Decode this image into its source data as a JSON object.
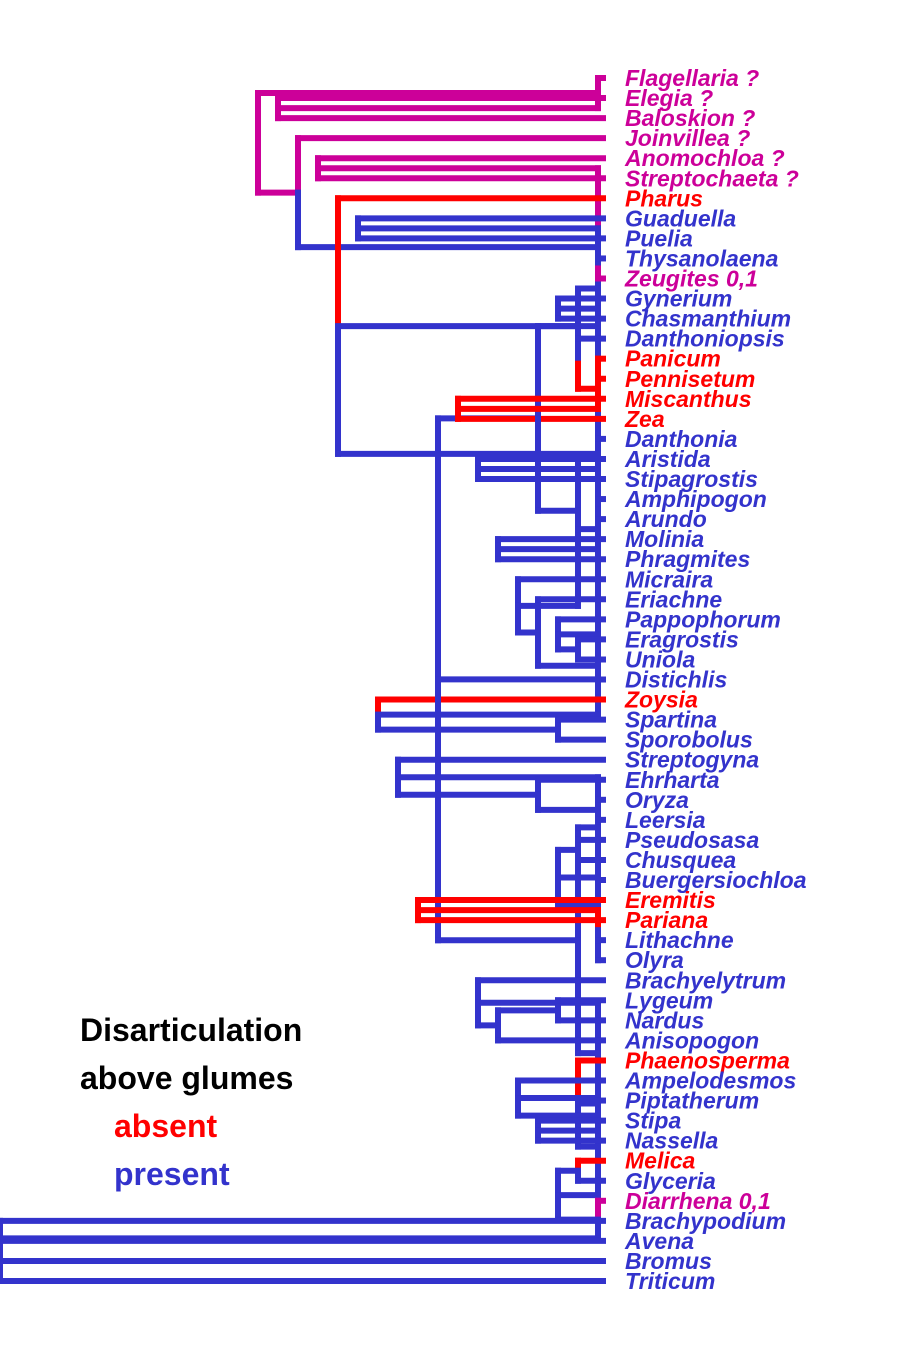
{
  "colors": {
    "absent": "#ff0000",
    "present": "#3333cc",
    "uncertain": "#cc0099",
    "title": "#000000"
  },
  "legend": {
    "title_line1": "Disarticulation",
    "title_line2": "above glumes",
    "absent_label": "absent",
    "present_label": "present"
  },
  "tree": {
    "taxa": [
      {
        "name": "Flagellaria ?",
        "state": "uncertain"
      },
      {
        "name": "Elegia ?",
        "state": "uncertain"
      },
      {
        "name": "Baloskion ?",
        "state": "uncertain"
      },
      {
        "name": "Joinvillea ?",
        "state": "uncertain"
      },
      {
        "name": "Anomochloa ?",
        "state": "uncertain"
      },
      {
        "name": "Streptochaeta ?",
        "state": "uncertain"
      },
      {
        "name": "Pharus",
        "state": "absent"
      },
      {
        "name": "Guaduella",
        "state": "present"
      },
      {
        "name": "Puelia",
        "state": "present"
      },
      {
        "name": "Thysanolaena",
        "state": "present"
      },
      {
        "name": "Zeugites 0,1",
        "state": "uncertain"
      },
      {
        "name": "Gynerium",
        "state": "present"
      },
      {
        "name": "Chasmanthium",
        "state": "present"
      },
      {
        "name": "Danthoniopsis",
        "state": "present"
      },
      {
        "name": "Panicum",
        "state": "absent"
      },
      {
        "name": "Pennisetum",
        "state": "absent"
      },
      {
        "name": "Miscanthus",
        "state": "absent"
      },
      {
        "name": "Zea",
        "state": "absent"
      },
      {
        "name": "Danthonia",
        "state": "present"
      },
      {
        "name": "Aristida",
        "state": "present"
      },
      {
        "name": "Stipagrostis",
        "state": "present"
      },
      {
        "name": "Amphipogon",
        "state": "present"
      },
      {
        "name": "Arundo",
        "state": "present"
      },
      {
        "name": "Molinia",
        "state": "present"
      },
      {
        "name": "Phragmites",
        "state": "present"
      },
      {
        "name": "Micraira",
        "state": "present"
      },
      {
        "name": "Eriachne",
        "state": "present"
      },
      {
        "name": "Pappophorum",
        "state": "present"
      },
      {
        "name": "Eragrostis",
        "state": "present"
      },
      {
        "name": "Uniola",
        "state": "present"
      },
      {
        "name": "Distichlis",
        "state": "present"
      },
      {
        "name": "Zoysia",
        "state": "absent"
      },
      {
        "name": "Spartina",
        "state": "present"
      },
      {
        "name": "Sporobolus",
        "state": "present"
      },
      {
        "name": "Streptogyna",
        "state": "present"
      },
      {
        "name": "Ehrharta",
        "state": "present"
      },
      {
        "name": "Oryza",
        "state": "present"
      },
      {
        "name": "Leersia",
        "state": "present"
      },
      {
        "name": "Pseudosasa",
        "state": "present"
      },
      {
        "name": "Chusquea",
        "state": "present"
      },
      {
        "name": "Buergersiochloa",
        "state": "present"
      },
      {
        "name": "Eremitis",
        "state": "absent"
      },
      {
        "name": "Pariana",
        "state": "absent"
      },
      {
        "name": "Lithachne",
        "state": "present"
      },
      {
        "name": "Olyra",
        "state": "present"
      },
      {
        "name": "Brachyelytrum",
        "state": "present"
      },
      {
        "name": "Lygeum",
        "state": "present"
      },
      {
        "name": "Nardus",
        "state": "present"
      },
      {
        "name": "Anisopogon",
        "state": "present"
      },
      {
        "name": "Phaenosperma",
        "state": "absent"
      },
      {
        "name": "Ampelodesmos",
        "state": "present"
      },
      {
        "name": "Piptatherum",
        "state": "present"
      },
      {
        "name": "Stipa",
        "state": "present"
      },
      {
        "name": "Nassella",
        "state": "present"
      },
      {
        "name": "Melica",
        "state": "absent"
      },
      {
        "name": "Glyceria",
        "state": "present"
      },
      {
        "name": "Diarrhena 0,1",
        "state": "uncertain"
      },
      {
        "name": "Brachypodium",
        "state": "present"
      },
      {
        "name": "Avena",
        "state": "present"
      },
      {
        "name": "Bromus",
        "state": "present"
      },
      {
        "name": "Triticum",
        "state": "present"
      }
    ],
    "topology": "((Flagellaria,(Elegia,Baloskion)),(Joinvillea,((Anomochloa,Streptochaeta),(Pharus,((Guaduella,Puelia),(((((Thysanolaena,Zeugites),(Gynerium,Chasmanthium)),(Danthoniopsis,((Panicum,Pennisetum),(Miscanthus,Zea)))),((Danthonia,(Aristida,Stipagrostis)),(((Amphipogon,Arundo),(Molinia,Phragmites)),(Micraira,(Eriachne,((Pappophorum,(Eragrostis,Uniola)),(Distichlis,(Zoysia,(Spartina,Sporobolus))))))))),(((Streptogyna,(Ehrharta,(Oryza,Leersia))),((Pseudosasa,Chusquea),(Buergersiochloa,((Eremitis,Pariana),(Lithachne,Olyra))))),((Brachyelytrum,((Lygeum,Nardus),Anisopogon)),(Phaenosperma,((Ampelodesmos,(Piptatherum,(Stipa,Nassella))),((Melica,Glyceria),(Diarrhena,(Brachypodium,(Avena,(Bromus,Triticum))))))))))))))))"
  }
}
